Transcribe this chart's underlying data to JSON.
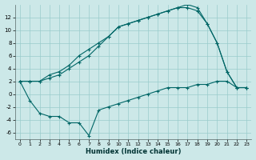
{
  "xlabel": "Humidex (Indice chaleur)",
  "bg_color": "#cce8e8",
  "grid_color": "#99cccc",
  "line_color": "#006666",
  "xlim": [
    -0.5,
    23.5
  ],
  "ylim": [
    -7,
    14
  ],
  "xticks": [
    0,
    1,
    2,
    3,
    4,
    5,
    6,
    7,
    8,
    9,
    10,
    11,
    12,
    13,
    14,
    15,
    16,
    17,
    18,
    19,
    20,
    21,
    22,
    23
  ],
  "yticks": [
    -6,
    -4,
    -2,
    0,
    2,
    4,
    6,
    8,
    10,
    12
  ],
  "c1x": [
    0,
    1,
    2,
    3,
    4,
    5,
    6,
    7,
    8,
    9,
    10,
    11,
    12,
    13,
    14,
    15,
    16,
    17,
    18,
    19,
    20,
    21,
    22,
    23
  ],
  "c1y": [
    2,
    -1,
    -3,
    -3.5,
    -3.5,
    -4.5,
    -4.5,
    -6.5,
    -2.5,
    -2,
    -1.5,
    -1,
    -0.5,
    0,
    0.5,
    1,
    1,
    1,
    1.5,
    1.5,
    2,
    2,
    1,
    1
  ],
  "c2x": [
    0,
    1,
    2,
    3,
    4,
    5,
    6,
    7,
    8,
    9,
    10,
    11,
    12,
    13,
    14,
    15,
    16,
    17,
    18,
    19,
    20,
    21,
    22,
    23
  ],
  "c2y": [
    2,
    2,
    2,
    2.5,
    3,
    4,
    5,
    6,
    7.5,
    9,
    10.5,
    11,
    11.5,
    12,
    12.5,
    13,
    13.5,
    13.5,
    13,
    11,
    8,
    3.5,
    1,
    1
  ],
  "c3x": [
    0,
    1,
    2,
    3,
    4,
    5,
    6,
    7,
    8,
    9,
    10,
    11,
    12,
    13,
    14,
    15,
    16,
    17,
    18,
    19,
    20,
    21,
    22,
    23
  ],
  "c3y": [
    2,
    2,
    2,
    3,
    3.5,
    4.5,
    6,
    7,
    8,
    9,
    10.5,
    11,
    11.5,
    12,
    12.5,
    13,
    13.5,
    14,
    13.5,
    11,
    8,
    3.5,
    1,
    1
  ]
}
